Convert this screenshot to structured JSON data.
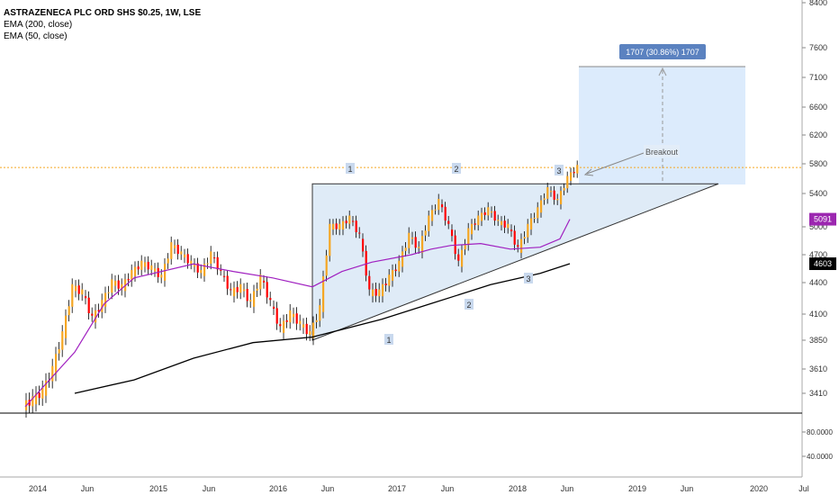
{
  "chart_data": {
    "type": "candlestick",
    "title": "ASTRAZENECA PLC ORD SHS $0.25, 1W, LSE",
    "indicators": [
      {
        "name": "EMA (200, close)",
        "color": "#000000"
      },
      {
        "name": "EMA (50, close)",
        "color": "#a020c0"
      }
    ],
    "price_axis_ticks": [
      "8400",
      "7600",
      "7100",
      "6600",
      "6200",
      "5800",
      "5400",
      "5000",
      "4700",
      "4400",
      "4100",
      "3850",
      "3610",
      "3410"
    ],
    "lower_pane_ticks": [
      "80.0000",
      "40.0000"
    ],
    "time_axis_labels": [
      "2014",
      "Jun",
      "2015",
      "Jun",
      "2016",
      "Jun",
      "2017",
      "Jun",
      "2018",
      "Jun",
      "2019",
      "Jun",
      "2020",
      "Jul"
    ],
    "price_tags": [
      {
        "text": "5091",
        "color": "#9c27b0"
      },
      {
        "text": "4603",
        "color": "#000000"
      }
    ],
    "resistance_level": 5530,
    "horizontal_line_level": 5750,
    "triangle": {
      "apex": {
        "date": "2019-11",
        "price": 5530
      },
      "lower_start": {
        "date": "2016-06",
        "price": 3850
      }
    },
    "touch_labels_top": [
      "1",
      "2",
      "3"
    ],
    "touch_labels_bottom": [
      "1",
      "2",
      "3"
    ],
    "target_box_label": "1707 (30.86%) 1707",
    "breakout_label": "Breakout",
    "ema50": [
      [
        "2014-01",
        3300
      ],
      [
        "2014-06",
        3750
      ],
      [
        "2014-09",
        4200
      ],
      [
        "2014-12",
        4450
      ],
      [
        "2015-06",
        4600
      ],
      [
        "2015-10",
        4520
      ],
      [
        "2016-02",
        4450
      ],
      [
        "2016-06",
        4360
      ],
      [
        "2016-09",
        4520
      ],
      [
        "2016-12",
        4620
      ],
      [
        "2017-04",
        4700
      ],
      [
        "2017-06",
        4760
      ],
      [
        "2017-08",
        4800
      ],
      [
        "2017-11",
        4820
      ],
      [
        "2018-02",
        4760
      ],
      [
        "2018-05",
        4780
      ],
      [
        "2018-07",
        4870
      ],
      [
        "2018-08",
        5091
      ]
    ],
    "ema200": [
      [
        "2014-06",
        3410
      ],
      [
        "2014-12",
        3520
      ],
      [
        "2015-06",
        3700
      ],
      [
        "2015-12",
        3830
      ],
      [
        "2016-06",
        3880
      ],
      [
        "2017-01",
        4050
      ],
      [
        "2017-06",
        4200
      ],
      [
        "2017-12",
        4380
      ],
      [
        "2018-05",
        4500
      ],
      [
        "2018-08",
        4603
      ]
    ],
    "closes": [
      [
        "2014-01",
        3350
      ],
      [
        "2014-02",
        3420
      ],
      [
        "2014-03",
        3600
      ],
      [
        "2014-04",
        3900
      ],
      [
        "2014-05",
        4350
      ],
      [
        "2014-06",
        4300
      ],
      [
        "2014-07",
        4050
      ],
      [
        "2014-08",
        4200
      ],
      [
        "2014-09",
        4400
      ],
      [
        "2014-10",
        4350
      ],
      [
        "2014-11",
        4500
      ],
      [
        "2014-12",
        4600
      ],
      [
        "2015-01",
        4550
      ],
      [
        "2015-02",
        4450
      ],
      [
        "2015-03",
        4800
      ],
      [
        "2015-04",
        4700
      ],
      [
        "2015-05",
        4600
      ],
      [
        "2015-06",
        4500
      ],
      [
        "2015-07",
        4700
      ],
      [
        "2015-08",
        4500
      ],
      [
        "2015-09",
        4300
      ],
      [
        "2015-10",
        4350
      ],
      [
        "2015-11",
        4200
      ],
      [
        "2015-12",
        4450
      ],
      [
        "2016-01",
        4200
      ],
      [
        "2016-02",
        3950
      ],
      [
        "2016-03",
        4100
      ],
      [
        "2016-04",
        4000
      ],
      [
        "2016-05",
        3900
      ],
      [
        "2016-06",
        4150
      ],
      [
        "2016-07",
        5000
      ],
      [
        "2016-08",
        5000
      ],
      [
        "2016-09",
        5100
      ],
      [
        "2016-10",
        4900
      ],
      [
        "2016-11",
        4300
      ],
      [
        "2016-12",
        4300
      ],
      [
        "2017-01",
        4450
      ],
      [
        "2017-02",
        4600
      ],
      [
        "2017-03",
        4900
      ],
      [
        "2017-04",
        4750
      ],
      [
        "2017-05",
        5100
      ],
      [
        "2017-06",
        5300
      ],
      [
        "2017-07",
        5000
      ],
      [
        "2017-08",
        4600
      ],
      [
        "2017-09",
        4950
      ],
      [
        "2017-10",
        5100
      ],
      [
        "2017-11",
        5200
      ],
      [
        "2017-12",
        5050
      ],
      [
        "2018-01",
        5000
      ],
      [
        "2018-02",
        4750
      ],
      [
        "2018-03",
        5000
      ],
      [
        "2018-04",
        5200
      ],
      [
        "2018-05",
        5450
      ],
      [
        "2018-06",
        5300
      ],
      [
        "2018-07",
        5600
      ],
      [
        "2018-08",
        5750
      ]
    ],
    "colors": {
      "up": "#f5a623",
      "down": "#ff0000",
      "ema50": "#a020c0",
      "ema200": "#000000",
      "triangle_fill": "#dbe9f6",
      "target_fill": "#d6e8fb",
      "target_label_bg": "#5b82c0",
      "horizontal_line": "#f5a623"
    }
  }
}
